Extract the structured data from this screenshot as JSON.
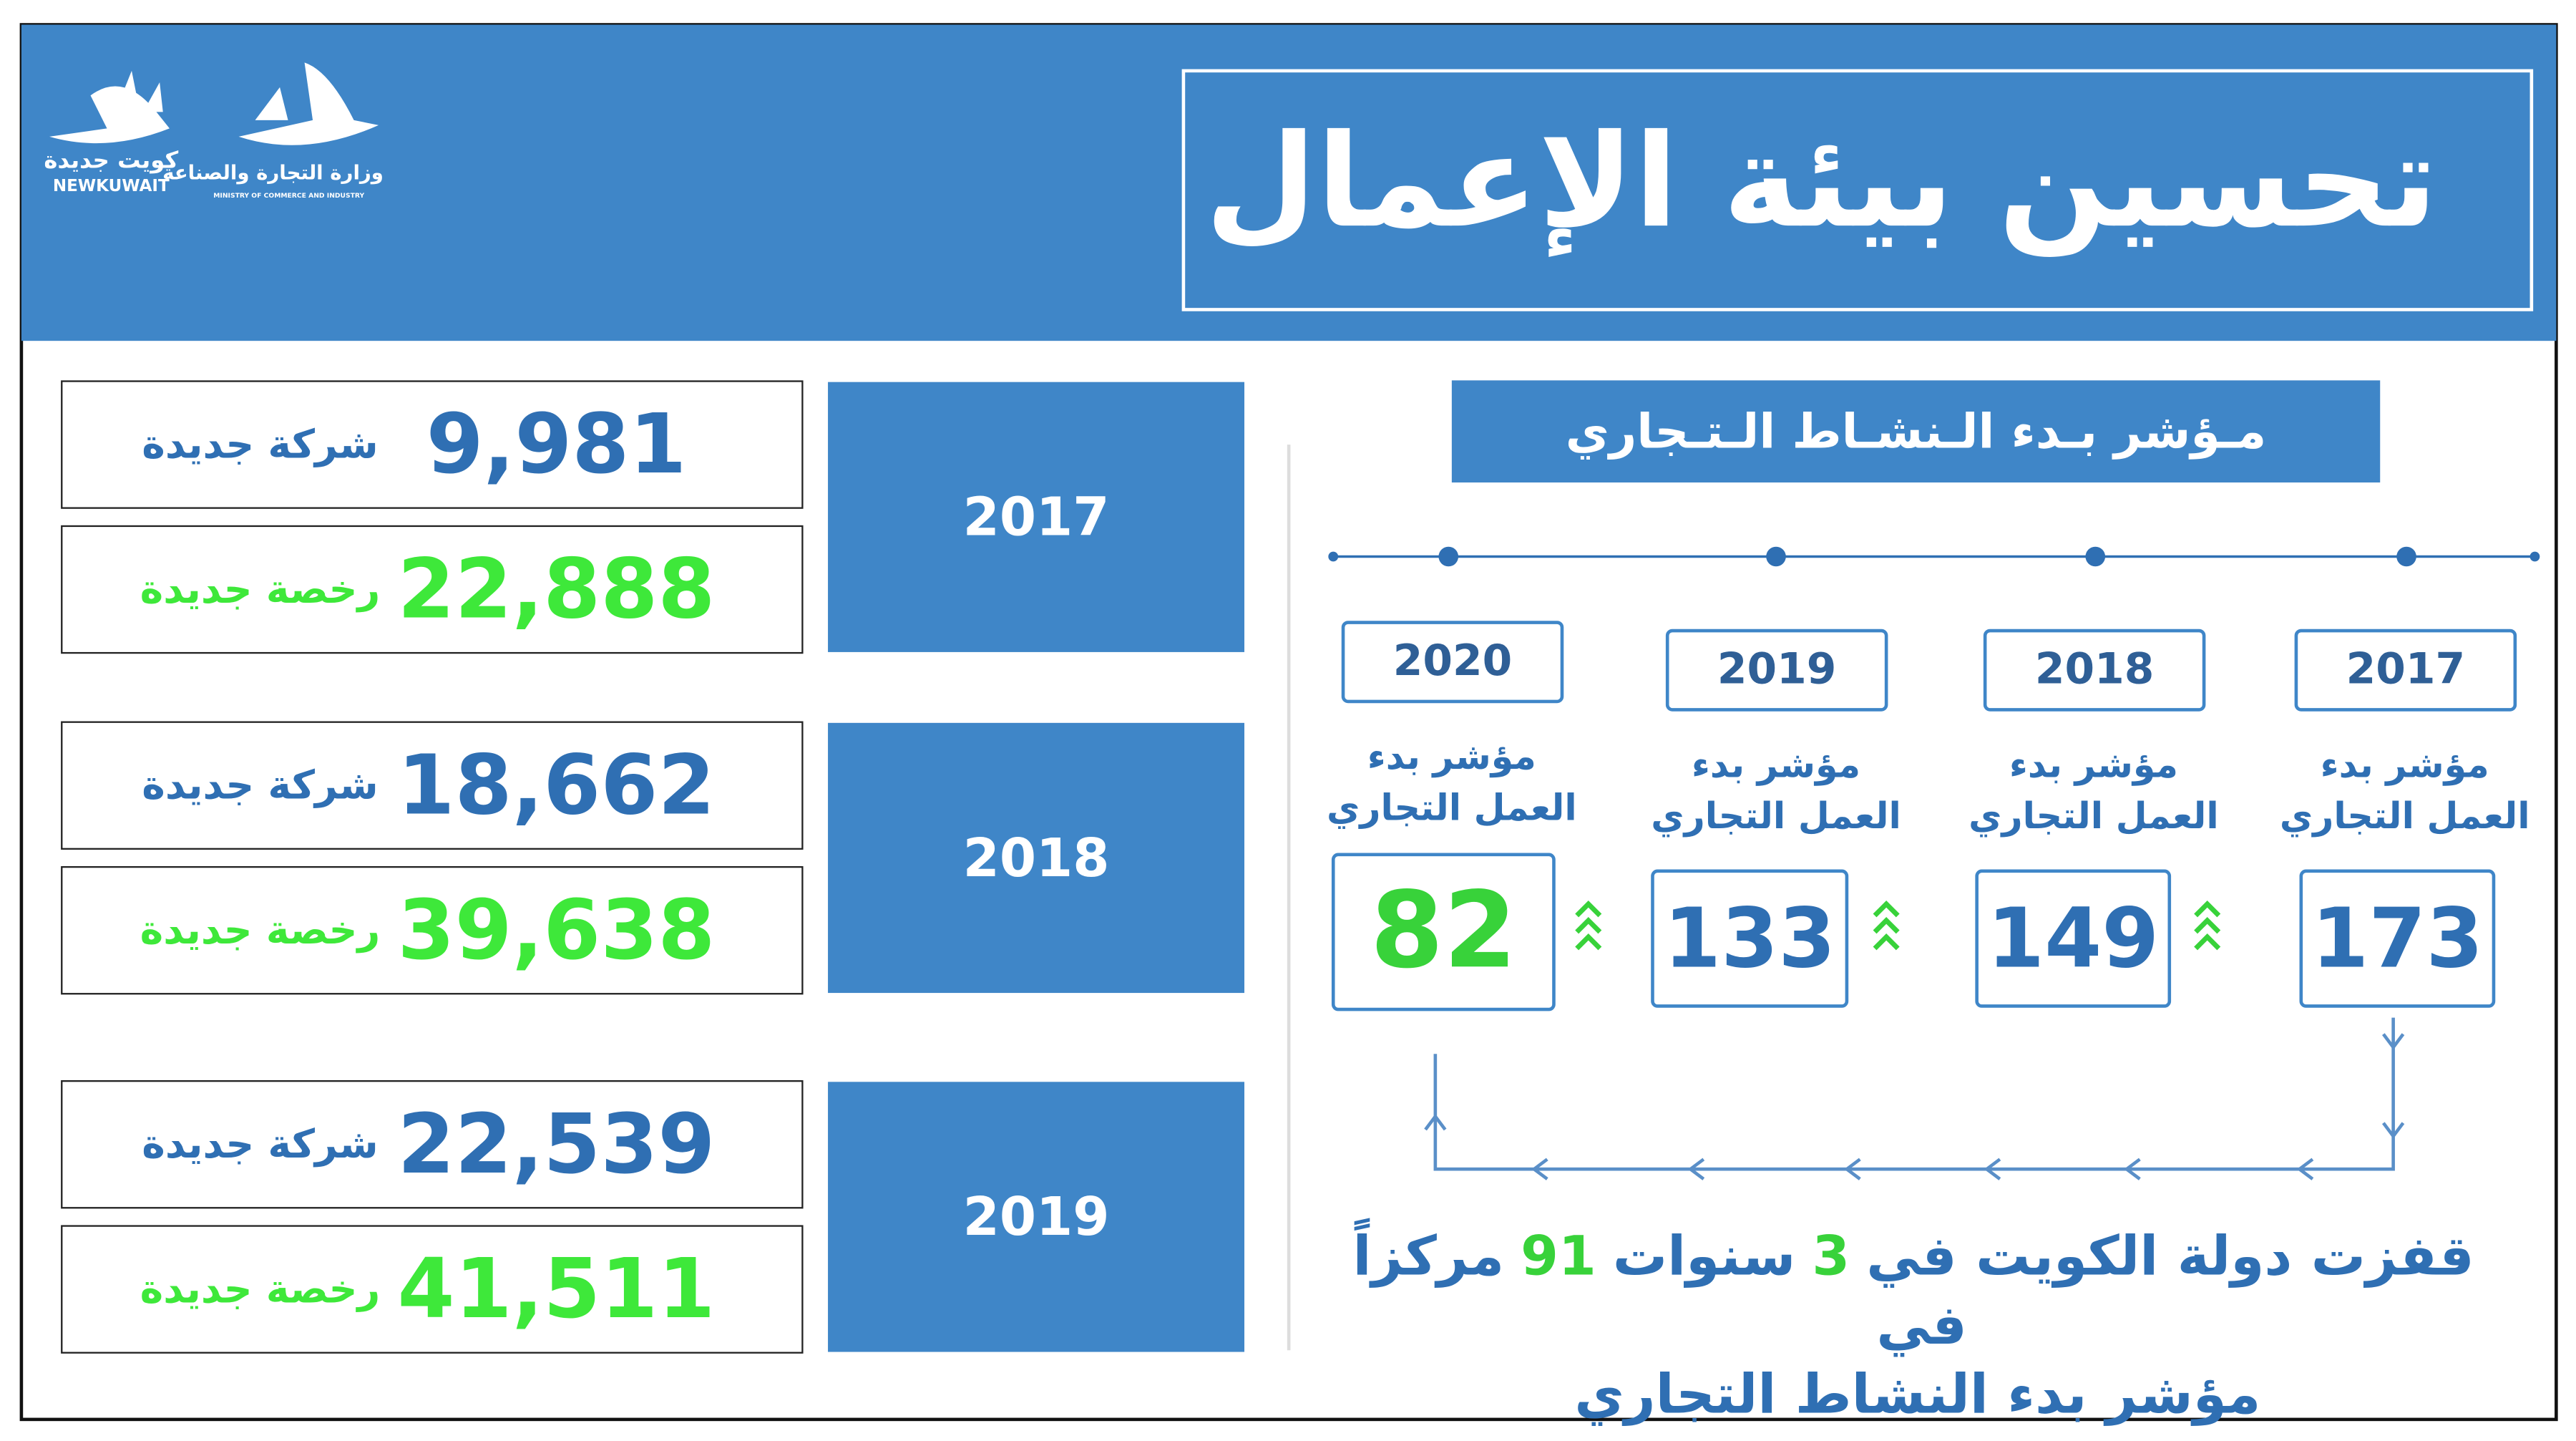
{
  "header": {
    "title": "تحسين بيئة الإعمال",
    "logos": {
      "new_kuwait_ar": "كويت جديدة",
      "new_kuwait_en": "NEWKUWAIT",
      "ministry_ar": "وزارة التجارة والصناعة",
      "ministry_en": "MINISTRY OF COMMERCE AND INDUSTRY"
    }
  },
  "registrations": [
    {
      "year": "2017",
      "companies": {
        "value": "9,981",
        "label": "شركة جديدة"
      },
      "licenses": {
        "value": "22,888",
        "label": "رخصة جديدة"
      }
    },
    {
      "year": "2018",
      "companies": {
        "value": "18,662",
        "label": "شركة جديدة"
      },
      "licenses": {
        "value": "39,638",
        "label": "رخصة جديدة"
      }
    },
    {
      "year": "2019",
      "companies": {
        "value": "22,539",
        "label": "شركة جديدة"
      },
      "licenses": {
        "value": "41,511",
        "label": "رخصة جديدة"
      }
    }
  ],
  "index": {
    "title": "مـؤشر بـدء الـنشـاط الـتـجاري",
    "timeline": [
      {
        "year": "2020",
        "label_line1": "مؤشر بدء",
        "label_line2": "العمل التجاري",
        "rank": "82"
      },
      {
        "year": "2019",
        "label_line1": "مؤشر بدء",
        "label_line2": "العمل التجاري",
        "rank": "133"
      },
      {
        "year": "2018",
        "label_line1": "مؤشر بدء",
        "label_line2": "العمل التجاري",
        "rank": "149"
      },
      {
        "year": "2017",
        "label_line1": "مؤشر بدء",
        "label_line2": "العمل التجاري",
        "rank": "173"
      }
    ],
    "summary": {
      "line1": [
        "قفزت دولة الكويت في",
        "3",
        "سنوات",
        "91",
        "مركزاً في"
      ],
      "line2": "مؤشر بدء النشاط التجاري"
    }
  }
}
